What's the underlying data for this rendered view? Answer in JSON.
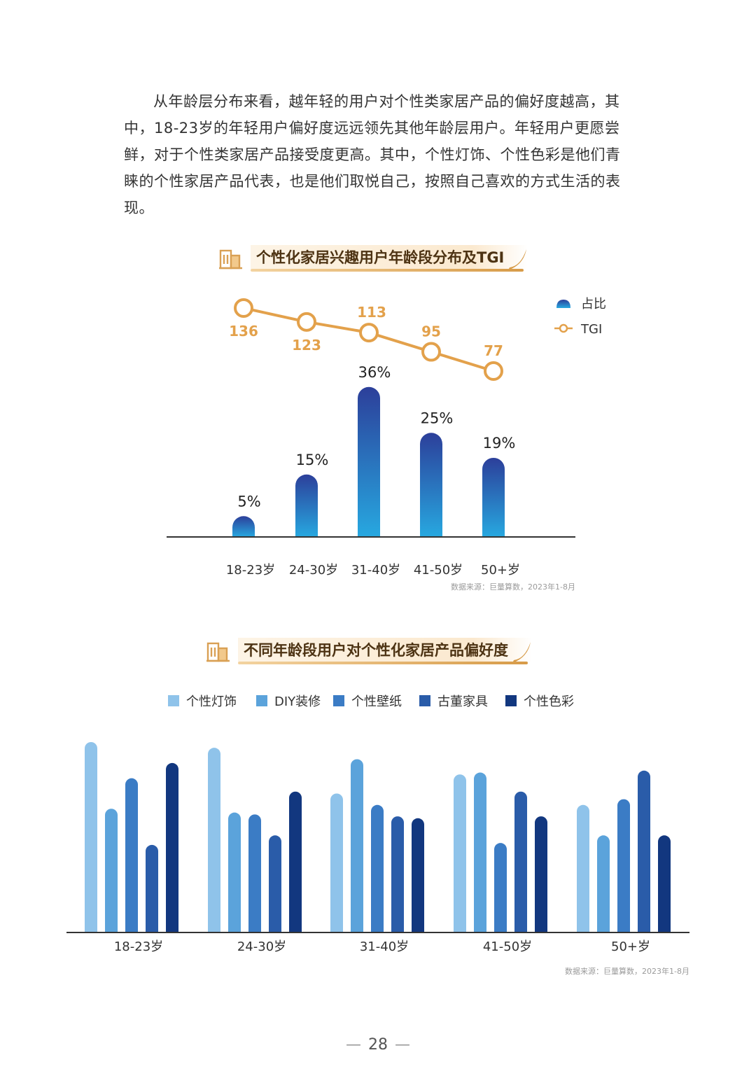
{
  "intro_text": "从年龄层分布来看，越年轻的用户对个性类家居产品的偏好度越高，其中，18-23岁的年轻用户偏好度远远领先其他年龄层用户。年轻用户更愿尝鲜，对于个性类家居产品接受度更高。其中，个性灯饰、个性色彩是他们青睐的个性家居产品代表，也是他们取悦自己，按照自己喜欢的方式生活的表现。",
  "page_number": "28",
  "colors": {
    "accent_gold": "#e3a14b",
    "bar_top": "#2c3f9a",
    "bar_bottom": "#27a8e0",
    "series": [
      "#8fc3ea",
      "#5ba3db",
      "#3b7cc5",
      "#2a5ca9",
      "#12377f"
    ]
  },
  "chart_data": [
    {
      "type": "bar",
      "title": "个性化家居兴趣用户年龄段分布及TGI",
      "categories": [
        "18-23岁",
        "24-30岁",
        "31-40岁",
        "41-50岁",
        "50+岁"
      ],
      "series": [
        {
          "name": "占比",
          "type": "bar",
          "values": [
            5,
            15,
            36,
            25,
            19
          ],
          "labels": [
            "5%",
            "15%",
            "36%",
            "25%",
            "19%"
          ]
        },
        {
          "name": "TGI",
          "type": "line",
          "values": [
            136,
            123,
            113,
            95,
            77
          ],
          "labels": [
            "136",
            "123",
            "113",
            "95",
            "77"
          ]
        }
      ],
      "legend_position": "top-right",
      "source": "数据来源：巨量算数，2023年1-8月"
    },
    {
      "type": "bar",
      "title": "不同年龄段用户对个性化家居产品偏好度",
      "categories": [
        "18-23岁",
        "24-30岁",
        "31-40岁",
        "41-50岁",
        "50+岁"
      ],
      "series": [
        {
          "name": "个性灯饰",
          "values": [
            100,
            97,
            73,
            83,
            67
          ]
        },
        {
          "name": "DIY装修",
          "values": [
            65,
            63,
            91,
            84,
            51
          ]
        },
        {
          "name": "个性壁纸",
          "values": [
            81,
            62,
            67,
            47,
            70
          ]
        },
        {
          "name": "古董家具",
          "values": [
            46,
            51,
            61,
            74,
            85
          ]
        },
        {
          "name": "个性色彩",
          "values": [
            89,
            74,
            60,
            61,
            51
          ]
        }
      ],
      "legend_position": "top",
      "source": "数据来源：巨量算数，2023年1-8月"
    }
  ]
}
